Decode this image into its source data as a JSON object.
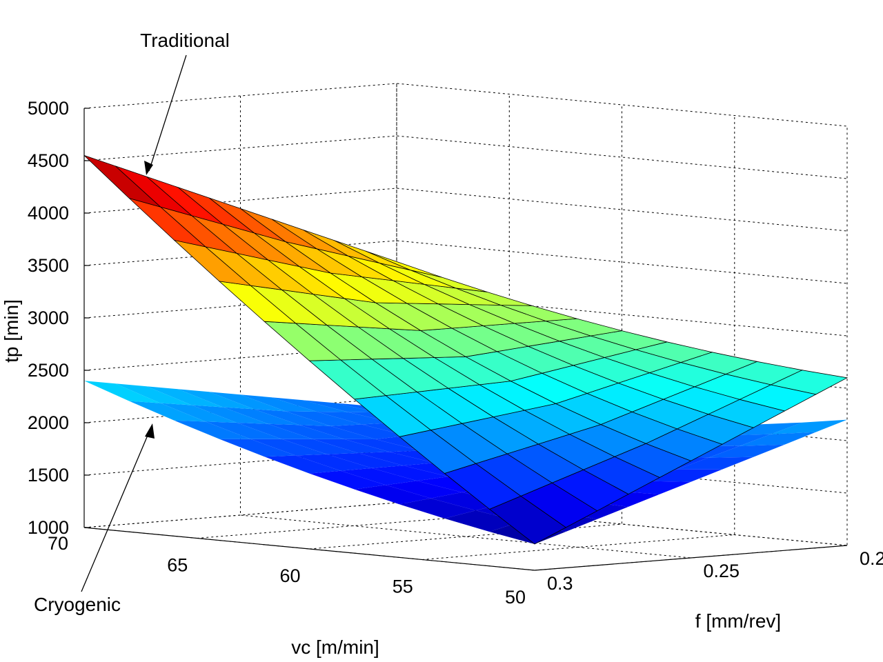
{
  "chart_data": {
    "type": "surface3d",
    "zlabel": "tp [min]",
    "xlabel": "vc [m/min]",
    "ylabel": "f [mm/rev]",
    "vc_ticks": [
      "70",
      "65",
      "60",
      "55",
      "50"
    ],
    "f_ticks": [
      "0.3",
      "0.25",
      "0.2"
    ],
    "z_ticks": [
      "1000",
      "1500",
      "2000",
      "2500",
      "3000",
      "3500",
      "4000",
      "4500",
      "5000"
    ],
    "zlim": [
      1000,
      5000
    ],
    "grid": true,
    "colormap": "jet",
    "annotations": [
      {
        "text": "Traditional",
        "points_to": "traditional-surface"
      },
      {
        "text": "Cryogenic",
        "points_to": "cryogenic-surface"
      }
    ],
    "series": [
      {
        "surface": "traditional-surface",
        "corners": {
          "vc70_f0.3": 4550,
          "vc50_f0.3": 1250,
          "vc70_f0.2": 3300,
          "vc50_f0.2": 2600
        },
        "rows": 10,
        "cols": 10
      },
      {
        "surface": "cryogenic-surface",
        "corners": {
          "vc70_f0.3": 2400,
          "vc50_f0.3": 1250,
          "vc70_f0.2": 1900,
          "vc50_f0.2": 2200
        },
        "rows": 10,
        "cols": 10
      }
    ]
  }
}
